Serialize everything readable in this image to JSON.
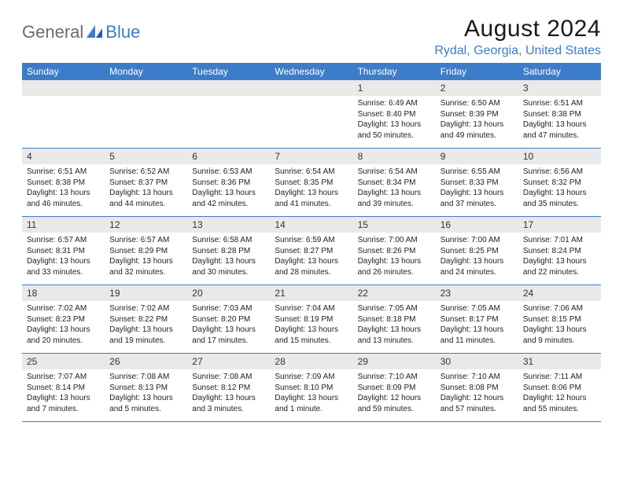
{
  "brand": {
    "general": "General",
    "blue": "Blue"
  },
  "title": "August 2024",
  "location": "Rydal, Georgia, United States",
  "weekdays": [
    "Sunday",
    "Monday",
    "Tuesday",
    "Wednesday",
    "Thursday",
    "Friday",
    "Saturday"
  ],
  "colors": {
    "header_bg": "#3d7cc9",
    "header_text": "#ffffff",
    "daynum_bg": "#e9e9e9",
    "row_border": "#3d7cc9",
    "location_color": "#3d7cc9",
    "logo_gray": "#6b6b6b"
  },
  "weeks": [
    [
      {
        "num": "",
        "sunrise": "",
        "sunset": "",
        "daylight": ""
      },
      {
        "num": "",
        "sunrise": "",
        "sunset": "",
        "daylight": ""
      },
      {
        "num": "",
        "sunrise": "",
        "sunset": "",
        "daylight": ""
      },
      {
        "num": "",
        "sunrise": "",
        "sunset": "",
        "daylight": ""
      },
      {
        "num": "1",
        "sunrise": "Sunrise: 6:49 AM",
        "sunset": "Sunset: 8:40 PM",
        "daylight": "Daylight: 13 hours and 50 minutes."
      },
      {
        "num": "2",
        "sunrise": "Sunrise: 6:50 AM",
        "sunset": "Sunset: 8:39 PM",
        "daylight": "Daylight: 13 hours and 49 minutes."
      },
      {
        "num": "3",
        "sunrise": "Sunrise: 6:51 AM",
        "sunset": "Sunset: 8:38 PM",
        "daylight": "Daylight: 13 hours and 47 minutes."
      }
    ],
    [
      {
        "num": "4",
        "sunrise": "Sunrise: 6:51 AM",
        "sunset": "Sunset: 8:38 PM",
        "daylight": "Daylight: 13 hours and 46 minutes."
      },
      {
        "num": "5",
        "sunrise": "Sunrise: 6:52 AM",
        "sunset": "Sunset: 8:37 PM",
        "daylight": "Daylight: 13 hours and 44 minutes."
      },
      {
        "num": "6",
        "sunrise": "Sunrise: 6:53 AM",
        "sunset": "Sunset: 8:36 PM",
        "daylight": "Daylight: 13 hours and 42 minutes."
      },
      {
        "num": "7",
        "sunrise": "Sunrise: 6:54 AM",
        "sunset": "Sunset: 8:35 PM",
        "daylight": "Daylight: 13 hours and 41 minutes."
      },
      {
        "num": "8",
        "sunrise": "Sunrise: 6:54 AM",
        "sunset": "Sunset: 8:34 PM",
        "daylight": "Daylight: 13 hours and 39 minutes."
      },
      {
        "num": "9",
        "sunrise": "Sunrise: 6:55 AM",
        "sunset": "Sunset: 8:33 PM",
        "daylight": "Daylight: 13 hours and 37 minutes."
      },
      {
        "num": "10",
        "sunrise": "Sunrise: 6:56 AM",
        "sunset": "Sunset: 8:32 PM",
        "daylight": "Daylight: 13 hours and 35 minutes."
      }
    ],
    [
      {
        "num": "11",
        "sunrise": "Sunrise: 6:57 AM",
        "sunset": "Sunset: 8:31 PM",
        "daylight": "Daylight: 13 hours and 33 minutes."
      },
      {
        "num": "12",
        "sunrise": "Sunrise: 6:57 AM",
        "sunset": "Sunset: 8:29 PM",
        "daylight": "Daylight: 13 hours and 32 minutes."
      },
      {
        "num": "13",
        "sunrise": "Sunrise: 6:58 AM",
        "sunset": "Sunset: 8:28 PM",
        "daylight": "Daylight: 13 hours and 30 minutes."
      },
      {
        "num": "14",
        "sunrise": "Sunrise: 6:59 AM",
        "sunset": "Sunset: 8:27 PM",
        "daylight": "Daylight: 13 hours and 28 minutes."
      },
      {
        "num": "15",
        "sunrise": "Sunrise: 7:00 AM",
        "sunset": "Sunset: 8:26 PM",
        "daylight": "Daylight: 13 hours and 26 minutes."
      },
      {
        "num": "16",
        "sunrise": "Sunrise: 7:00 AM",
        "sunset": "Sunset: 8:25 PM",
        "daylight": "Daylight: 13 hours and 24 minutes."
      },
      {
        "num": "17",
        "sunrise": "Sunrise: 7:01 AM",
        "sunset": "Sunset: 8:24 PM",
        "daylight": "Daylight: 13 hours and 22 minutes."
      }
    ],
    [
      {
        "num": "18",
        "sunrise": "Sunrise: 7:02 AM",
        "sunset": "Sunset: 8:23 PM",
        "daylight": "Daylight: 13 hours and 20 minutes."
      },
      {
        "num": "19",
        "sunrise": "Sunrise: 7:02 AM",
        "sunset": "Sunset: 8:22 PM",
        "daylight": "Daylight: 13 hours and 19 minutes."
      },
      {
        "num": "20",
        "sunrise": "Sunrise: 7:03 AM",
        "sunset": "Sunset: 8:20 PM",
        "daylight": "Daylight: 13 hours and 17 minutes."
      },
      {
        "num": "21",
        "sunrise": "Sunrise: 7:04 AM",
        "sunset": "Sunset: 8:19 PM",
        "daylight": "Daylight: 13 hours and 15 minutes."
      },
      {
        "num": "22",
        "sunrise": "Sunrise: 7:05 AM",
        "sunset": "Sunset: 8:18 PM",
        "daylight": "Daylight: 13 hours and 13 minutes."
      },
      {
        "num": "23",
        "sunrise": "Sunrise: 7:05 AM",
        "sunset": "Sunset: 8:17 PM",
        "daylight": "Daylight: 13 hours and 11 minutes."
      },
      {
        "num": "24",
        "sunrise": "Sunrise: 7:06 AM",
        "sunset": "Sunset: 8:15 PM",
        "daylight": "Daylight: 13 hours and 9 minutes."
      }
    ],
    [
      {
        "num": "25",
        "sunrise": "Sunrise: 7:07 AM",
        "sunset": "Sunset: 8:14 PM",
        "daylight": "Daylight: 13 hours and 7 minutes."
      },
      {
        "num": "26",
        "sunrise": "Sunrise: 7:08 AM",
        "sunset": "Sunset: 8:13 PM",
        "daylight": "Daylight: 13 hours and 5 minutes."
      },
      {
        "num": "27",
        "sunrise": "Sunrise: 7:08 AM",
        "sunset": "Sunset: 8:12 PM",
        "daylight": "Daylight: 13 hours and 3 minutes."
      },
      {
        "num": "28",
        "sunrise": "Sunrise: 7:09 AM",
        "sunset": "Sunset: 8:10 PM",
        "daylight": "Daylight: 13 hours and 1 minute."
      },
      {
        "num": "29",
        "sunrise": "Sunrise: 7:10 AM",
        "sunset": "Sunset: 8:09 PM",
        "daylight": "Daylight: 12 hours and 59 minutes."
      },
      {
        "num": "30",
        "sunrise": "Sunrise: 7:10 AM",
        "sunset": "Sunset: 8:08 PM",
        "daylight": "Daylight: 12 hours and 57 minutes."
      },
      {
        "num": "31",
        "sunrise": "Sunrise: 7:11 AM",
        "sunset": "Sunset: 8:06 PM",
        "daylight": "Daylight: 12 hours and 55 minutes."
      }
    ]
  ]
}
